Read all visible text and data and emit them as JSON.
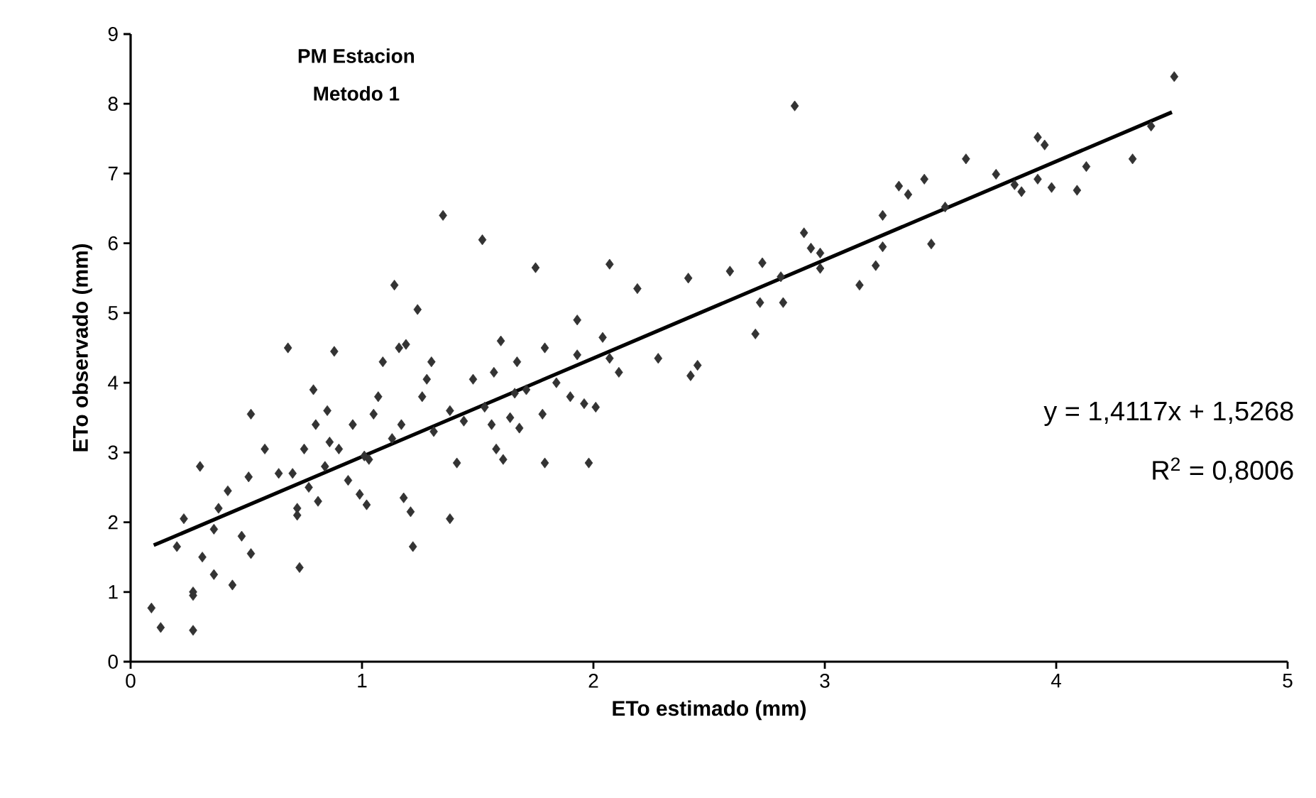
{
  "chart_data": {
    "type": "scatter",
    "title": "PM Estacion",
    "subtitle": "Metodo 1",
    "xlabel": "ETo estimado (mm)",
    "ylabel": "ETo observado (mm)",
    "xlim": [
      0,
      5
    ],
    "ylim": [
      0,
      9
    ],
    "xticks": [
      0,
      1,
      2,
      3,
      4,
      5
    ],
    "yticks": [
      0,
      1,
      2,
      3,
      4,
      5,
      6,
      7,
      8,
      9
    ],
    "grid": false,
    "marker": "diamond",
    "annotations": [
      "y = 1,4117x + 1,5268",
      "R$^{2}$ = 0,8006"
    ],
    "series": [
      {
        "color": "#333333",
        "x": [
          0.09,
          0.13,
          0.27,
          0.27,
          0.27,
          0.2,
          0.23,
          0.3,
          0.31,
          0.36,
          0.36,
          0.38,
          0.42,
          0.44,
          0.48,
          0.51,
          0.52,
          0.52,
          0.58,
          0.64,
          0.68,
          0.7,
          0.72,
          0.72,
          0.73,
          0.75,
          0.77,
          0.79,
          0.8,
          0.81,
          0.84,
          0.85,
          0.86,
          0.88,
          0.9,
          0.94,
          0.96,
          0.99,
          1.02,
          1.01,
          1.03,
          1.05,
          1.07,
          1.09,
          1.13,
          1.14,
          1.16,
          1.17,
          1.18,
          1.19,
          1.21,
          1.22,
          1.24,
          1.26,
          1.28,
          1.3,
          1.31,
          1.35,
          1.38,
          1.38,
          1.41,
          1.44,
          1.48,
          1.52,
          1.53,
          1.56,
          1.57,
          1.58,
          1.61,
          1.6,
          1.64,
          1.66,
          1.67,
          1.68,
          1.71,
          1.75,
          1.78,
          1.79,
          1.79,
          1.84,
          1.9,
          1.93,
          1.93,
          1.96,
          1.98,
          2.01,
          2.04,
          2.07,
          2.07,
          2.11,
          2.19,
          2.28,
          2.41,
          2.42,
          2.45,
          2.59,
          2.7,
          2.72,
          2.73,
          2.81,
          2.82,
          2.87,
          2.91,
          2.94,
          2.98,
          2.98,
          3.15,
          3.22,
          3.25,
          3.25,
          3.32,
          3.36,
          3.43,
          3.46,
          3.52,
          3.61,
          3.74,
          3.82,
          3.85,
          3.92,
          3.92,
          3.95,
          3.98,
          4.09,
          4.13,
          4.33,
          4.41,
          4.51
        ],
        "values": [
          0.77,
          0.49,
          0.45,
          0.95,
          1.0,
          1.65,
          2.05,
          2.8,
          1.5,
          1.25,
          1.9,
          2.2,
          2.45,
          1.1,
          1.8,
          2.65,
          3.55,
          1.55,
          3.05,
          2.7,
          4.5,
          2.7,
          2.2,
          2.1,
          1.35,
          3.05,
          2.5,
          3.9,
          3.4,
          2.3,
          2.8,
          3.6,
          3.15,
          4.45,
          3.05,
          2.6,
          3.4,
          2.4,
          2.25,
          2.95,
          2.9,
          3.55,
          3.8,
          4.3,
          3.2,
          5.4,
          4.5,
          3.4,
          2.35,
          4.55,
          2.15,
          1.65,
          5.05,
          3.8,
          4.05,
          4.3,
          3.3,
          6.4,
          3.6,
          2.05,
          2.85,
          3.45,
          4.05,
          6.05,
          3.65,
          3.4,
          4.15,
          3.05,
          2.9,
          4.6,
          3.5,
          3.85,
          4.3,
          3.35,
          3.9,
          5.65,
          3.55,
          2.85,
          4.5,
          4.0,
          3.8,
          4.4,
          4.9,
          3.7,
          2.85,
          3.65,
          4.65,
          4.35,
          5.7,
          4.15,
          5.35,
          4.35,
          5.5,
          4.1,
          4.25,
          5.6,
          4.7,
          5.15,
          5.72,
          5.52,
          5.15,
          7.97,
          6.15,
          5.93,
          5.86,
          5.64,
          5.4,
          5.68,
          5.95,
          6.4,
          6.82,
          6.7,
          6.92,
          5.99,
          6.52,
          7.21,
          6.99,
          6.84,
          6.74,
          6.92,
          7.52,
          7.41,
          6.8,
          6.76,
          7.1,
          7.21,
          7.68,
          8.39
        ]
      },
      {
        "type": "line",
        "color": "#000000",
        "marker": "none",
        "x": [
          0.1,
          4.5
        ],
        "values": [
          1.67,
          7.88
        ]
      }
    ]
  }
}
